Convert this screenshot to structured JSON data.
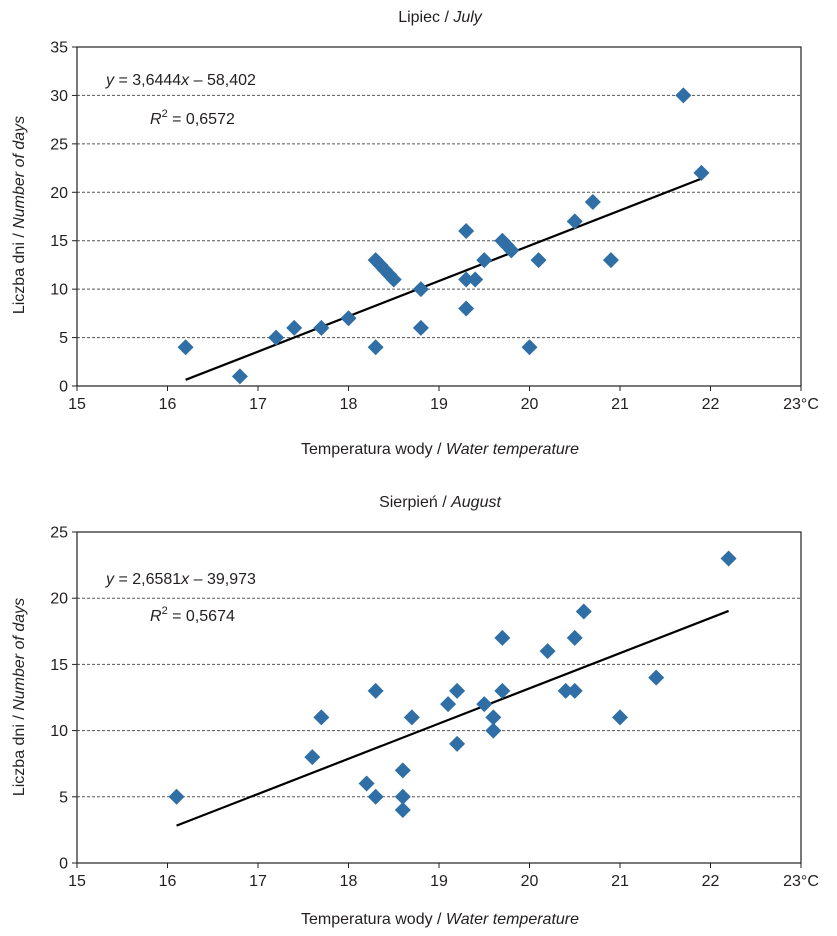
{
  "chart_data": [
    {
      "type": "scatter",
      "title": "Lipiec / ",
      "title_italic": "July",
      "xlabel": "Temperatura wody / ",
      "xlabel_italic": "Water temperature",
      "ylabel": "Liczba dni / ",
      "ylabel_italic": "Number of days",
      "xlim": [
        15,
        23
      ],
      "ylim": [
        0,
        35
      ],
      "xticks": [
        "15",
        "16",
        "17",
        "18",
        "19",
        "20",
        "21",
        "22",
        "23°C"
      ],
      "yticks": [
        "0",
        "5",
        "10",
        "15",
        "20",
        "25",
        "30",
        "35"
      ],
      "grid": "horizontal dashed",
      "marker_color": "#2f6fa6",
      "series": [
        {
          "points": [
            [
              16.2,
              4
            ],
            [
              16.8,
              1
            ],
            [
              17.2,
              5
            ],
            [
              17.4,
              6
            ],
            [
              17.7,
              6
            ],
            [
              18.0,
              7
            ],
            [
              18.3,
              4
            ],
            [
              18.3,
              13
            ],
            [
              18.35,
              12.5
            ],
            [
              18.4,
              12
            ],
            [
              18.45,
              11.5
            ],
            [
              18.5,
              11
            ],
            [
              18.8,
              6
            ],
            [
              18.8,
              10
            ],
            [
              19.3,
              8
            ],
            [
              19.3,
              11
            ],
            [
              19.3,
              16
            ],
            [
              19.4,
              11
            ],
            [
              19.5,
              13
            ],
            [
              19.7,
              15
            ],
            [
              19.75,
              14.5
            ],
            [
              19.8,
              14
            ],
            [
              20.0,
              4
            ],
            [
              20.1,
              13
            ],
            [
              20.5,
              17
            ],
            [
              20.7,
              19
            ],
            [
              20.9,
              13
            ],
            [
              21.7,
              30
            ],
            [
              21.9,
              22
            ]
          ]
        }
      ],
      "trendline": {
        "slope": 3.6444,
        "intercept": -58.402,
        "x_range": [
          16.2,
          21.9
        ],
        "color": "#000000",
        "equation_parts": [
          "y",
          " = 3,6444",
          "x",
          " – 58,402"
        ],
        "r2_parts": [
          "R",
          "2",
          " = 0,6572"
        ]
      }
    },
    {
      "type": "scatter",
      "title": "Sierpień / ",
      "title_italic": "August",
      "xlabel": "Temperatura wody / ",
      "xlabel_italic": "Water temperature",
      "ylabel": "Liczba dni / ",
      "ylabel_italic": "Number of days",
      "xlim": [
        15,
        23
      ],
      "ylim": [
        0,
        25
      ],
      "xticks": [
        "15",
        "16",
        "17",
        "18",
        "19",
        "20",
        "21",
        "22",
        "23°C"
      ],
      "yticks": [
        "0",
        "5",
        "10",
        "15",
        "20",
        "25"
      ],
      "grid": "horizontal dashed",
      "marker_color": "#2f6fa6",
      "series": [
        {
          "points": [
            [
              16.1,
              5
            ],
            [
              17.6,
              8
            ],
            [
              17.7,
              11
            ],
            [
              18.2,
              6
            ],
            [
              18.3,
              5
            ],
            [
              18.3,
              13
            ],
            [
              18.6,
              4
            ],
            [
              18.6,
              5
            ],
            [
              18.6,
              7
            ],
            [
              18.7,
              11
            ],
            [
              19.1,
              12
            ],
            [
              19.2,
              9
            ],
            [
              19.2,
              13
            ],
            [
              19.5,
              12
            ],
            [
              19.6,
              10
            ],
            [
              19.6,
              11
            ],
            [
              19.7,
              13
            ],
            [
              19.7,
              17
            ],
            [
              20.2,
              16
            ],
            [
              20.4,
              13
            ],
            [
              20.5,
              13
            ],
            [
              20.5,
              17
            ],
            [
              20.6,
              19
            ],
            [
              21.0,
              11
            ],
            [
              21.4,
              14
            ],
            [
              22.2,
              23
            ]
          ]
        }
      ],
      "trendline": {
        "slope": 2.6581,
        "intercept": -39.973,
        "x_range": [
          16.1,
          22.2
        ],
        "color": "#000000",
        "equation_parts": [
          "y",
          " = 2,6581",
          "x",
          " – 39,973"
        ],
        "r2_parts": [
          "R",
          "2",
          " = 0,5674"
        ]
      }
    }
  ]
}
